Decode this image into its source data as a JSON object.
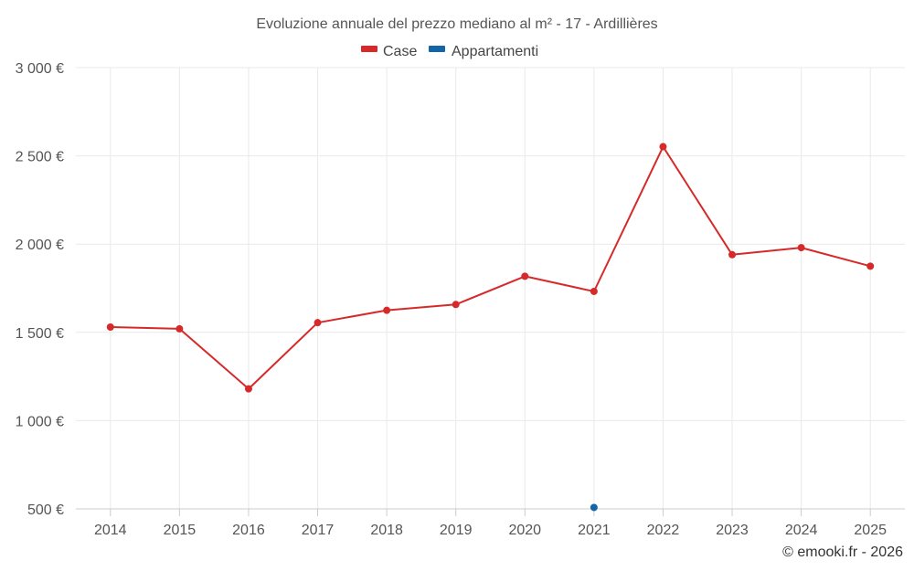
{
  "chart_data": {
    "type": "line",
    "title": "Evoluzione annuale del prezzo mediano al m² - 17 - Ardillières",
    "categories": [
      "2014",
      "2015",
      "2016",
      "2017",
      "2018",
      "2019",
      "2020",
      "2021",
      "2022",
      "2023",
      "2024",
      "2025"
    ],
    "series": [
      {
        "name": "Case",
        "color": "#d62a2a",
        "values": [
          1530,
          1520,
          1180,
          1555,
          1625,
          1658,
          1818,
          1732,
          2552,
          1940,
          1980,
          1875
        ]
      },
      {
        "name": "Appartamenti",
        "color": "#1565a6",
        "values": [
          null,
          null,
          null,
          null,
          null,
          null,
          null,
          508,
          null,
          null,
          null,
          null
        ]
      }
    ],
    "y_ticks": [
      500,
      1000,
      1500,
      2000,
      2500,
      3000
    ],
    "y_tick_labels": [
      "500 €",
      "1 000 €",
      "1 500 €",
      "2 000 €",
      "2 500 €",
      "3 000 €"
    ],
    "ylim": [
      500,
      3000
    ],
    "xlabel": "",
    "ylabel": "",
    "grid": true,
    "legend": "top-center"
  },
  "credit": "© emooki.fr - 2026"
}
